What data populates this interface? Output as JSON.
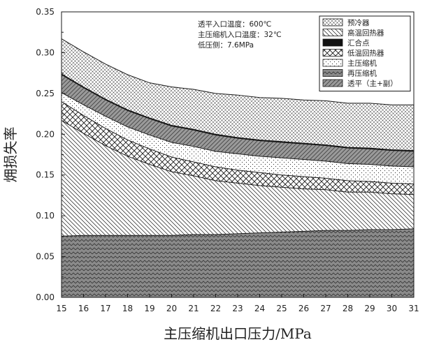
{
  "chart_data": {
    "type": "area",
    "stacked": true,
    "xlabel": "主压缩机出口压力/MPa",
    "ylabel": "㶲损失率",
    "xlim": [
      15,
      31
    ],
    "ylim": [
      0,
      0.35
    ],
    "x_ticks": [
      15,
      16,
      17,
      18,
      19,
      20,
      21,
      22,
      23,
      24,
      25,
      26,
      27,
      28,
      29,
      30,
      31
    ],
    "y_ticks": [
      0.0,
      0.05,
      0.1,
      0.15,
      0.2,
      0.25,
      0.3,
      0.35
    ],
    "y_tick_labels": [
      "0.00",
      "0.05",
      "0.10",
      "0.15",
      "0.20",
      "0.25",
      "0.30",
      "0.35"
    ],
    "grid": false,
    "legend_position": "top-right",
    "annotations": [
      "透平入口温度：600℃",
      "主压缩机入口温度：32℃",
      "低压侧：7.6MPa"
    ],
    "x": [
      15,
      16,
      17,
      18,
      19,
      20,
      21,
      22,
      23,
      24,
      25,
      26,
      27,
      28,
      29,
      30,
      31
    ],
    "series": [
      {
        "name": "再压缩机",
        "pattern": "zigzag",
        "values": [
          0.075,
          0.076,
          0.076,
          0.076,
          0.076,
          0.076,
          0.077,
          0.077,
          0.078,
          0.079,
          0.08,
          0.081,
          0.082,
          0.082,
          0.083,
          0.083,
          0.084
        ]
      },
      {
        "name": "高温回热器",
        "pattern": "diagonal-back",
        "values": [
          0.142,
          0.125,
          0.11,
          0.097,
          0.087,
          0.078,
          0.072,
          0.066,
          0.062,
          0.058,
          0.055,
          0.052,
          0.05,
          0.047,
          0.046,
          0.044,
          0.042
        ]
      },
      {
        "name": "低温回热器",
        "pattern": "crosshatch",
        "values": [
          0.023,
          0.022,
          0.021,
          0.02,
          0.019,
          0.018,
          0.017,
          0.017,
          0.016,
          0.016,
          0.015,
          0.015,
          0.014,
          0.014,
          0.013,
          0.013,
          0.013
        ]
      },
      {
        "name": "主压缩机",
        "pattern": "dots",
        "values": [
          0.011,
          0.013,
          0.015,
          0.016,
          0.017,
          0.018,
          0.019,
          0.019,
          0.02,
          0.02,
          0.021,
          0.021,
          0.021,
          0.021,
          0.021,
          0.021,
          0.021
        ]
      },
      {
        "name": "透平（主+副）",
        "pattern": "basketweave",
        "values": [
          0.022,
          0.021,
          0.02,
          0.02,
          0.02,
          0.02,
          0.02,
          0.02,
          0.019,
          0.019,
          0.019,
          0.019,
          0.019,
          0.019,
          0.019,
          0.019,
          0.019
        ]
      },
      {
        "name": "汇合点",
        "pattern": "solid-dark",
        "values": [
          0.001,
          0.001,
          0.001,
          0.001,
          0.001,
          0.001,
          0.001,
          0.001,
          0.001,
          0.001,
          0.001,
          0.001,
          0.001,
          0.001,
          0.001,
          0.001,
          0.001
        ]
      },
      {
        "name": "预冷器",
        "pattern": "crosshatch-fine",
        "values": [
          0.043,
          0.043,
          0.043,
          0.043,
          0.043,
          0.047,
          0.049,
          0.05,
          0.052,
          0.052,
          0.053,
          0.053,
          0.054,
          0.054,
          0.055,
          0.055,
          0.056
        ]
      }
    ],
    "legend_order": [
      "预冷器",
      "高温回热器",
      "汇合点",
      "低温回热器",
      "主压缩机",
      "再压缩机",
      "透平（主+副）"
    ],
    "colors": {
      "ink": "#1a1a1a",
      "solid_dark": "#111111",
      "solid_fill": "#555555"
    }
  }
}
